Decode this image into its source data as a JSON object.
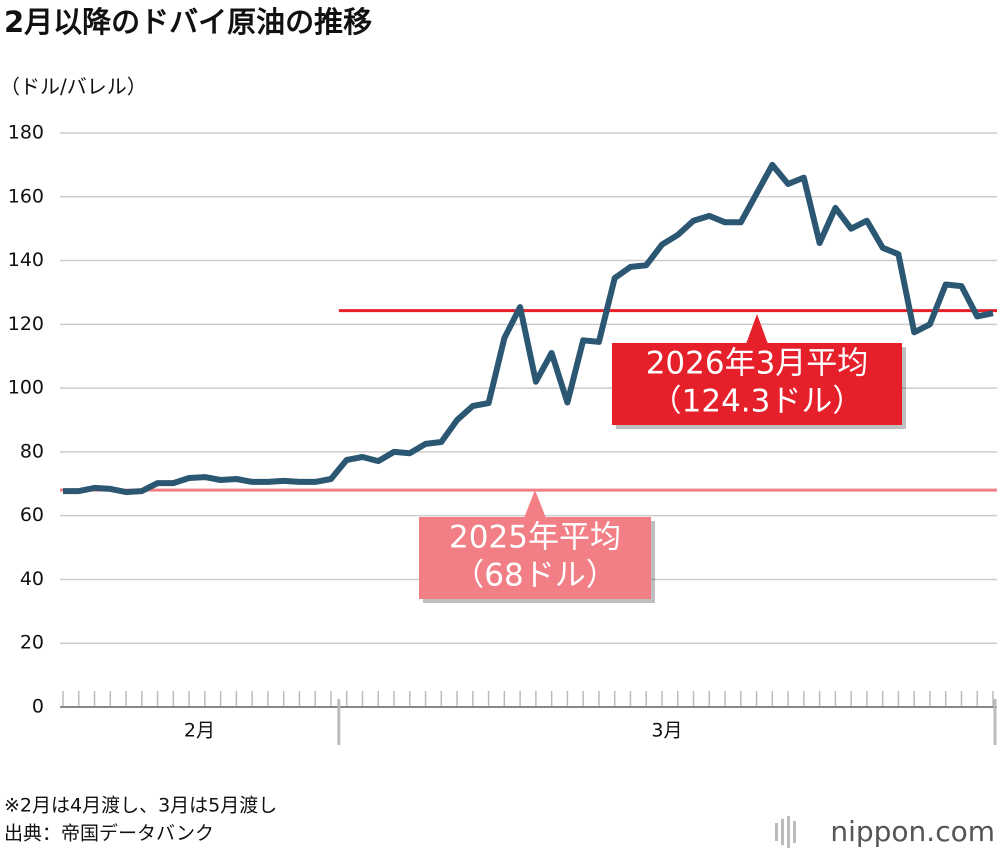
{
  "chart_data": {
    "type": "line",
    "title": "2月以降のドバイ原油の推移",
    "y_axis_label": "（ドル/バレル）",
    "categories": [
      "2月",
      "2月",
      "2月",
      "2月",
      "2月",
      "2月",
      "2月",
      "2月",
      "2月",
      "2月",
      "2月",
      "2月",
      "2月",
      "2月",
      "2月",
      "2月",
      "2月",
      "2月",
      "3月",
      "3月",
      "3月",
      "3月",
      "3月",
      "3月",
      "3月",
      "3月",
      "3月",
      "3月",
      "3月",
      "3月",
      "3月",
      "3月",
      "3月",
      "3月",
      "3月",
      "3月",
      "3月",
      "3月",
      "3月",
      "3月",
      "3月",
      "3月",
      "3月",
      "3月",
      "3月",
      "3月",
      "3月",
      "3月",
      "3月",
      "3月",
      "3月",
      "3月",
      "3月",
      "3月",
      "3月",
      "3月",
      "3月",
      "3月",
      "3月",
      "3月"
    ],
    "series": [
      {
        "name": "ドバイ原油",
        "color": "#2b5773",
        "values": [
          67.7,
          67.7,
          68.7,
          68.4,
          67.4,
          67.7,
          70.2,
          70.2,
          71.8,
          72.1,
          71.2,
          71.5,
          70.6,
          70.6,
          70.9,
          70.6,
          70.6,
          71.5,
          77.5,
          78.4,
          77.1,
          80.0,
          79.6,
          82.5,
          83.1,
          90.0,
          94.4,
          95.3,
          115.7,
          125.4,
          102,
          111,
          95.5,
          115,
          114.5,
          134.5,
          138,
          138.5,
          145,
          148,
          152.5,
          154,
          152,
          152,
          161,
          170,
          164,
          166,
          145.5,
          156.5,
          150,
          152.5,
          144,
          142,
          117.5,
          120,
          132.5,
          132,
          122.5,
          123.5
        ]
      }
    ],
    "reference_lines": [
      {
        "value": 124.3,
        "color": "#e5202a",
        "label_lines": [
          "2026年3月平均",
          "（124.3ドル）"
        ]
      },
      {
        "value": 68,
        "color": "#f27f86",
        "label_lines": [
          "2025年平均",
          "（68ドル）"
        ]
      }
    ],
    "ylim": [
      0,
      180
    ],
    "yticks": [
      0,
      20,
      40,
      60,
      80,
      100,
      120,
      140,
      160,
      180
    ],
    "grid": true,
    "notes": [
      "※2月は4月渡し、3月は5月渡し",
      "出典：帝国データバンク"
    ],
    "brand": "nippon.com"
  }
}
